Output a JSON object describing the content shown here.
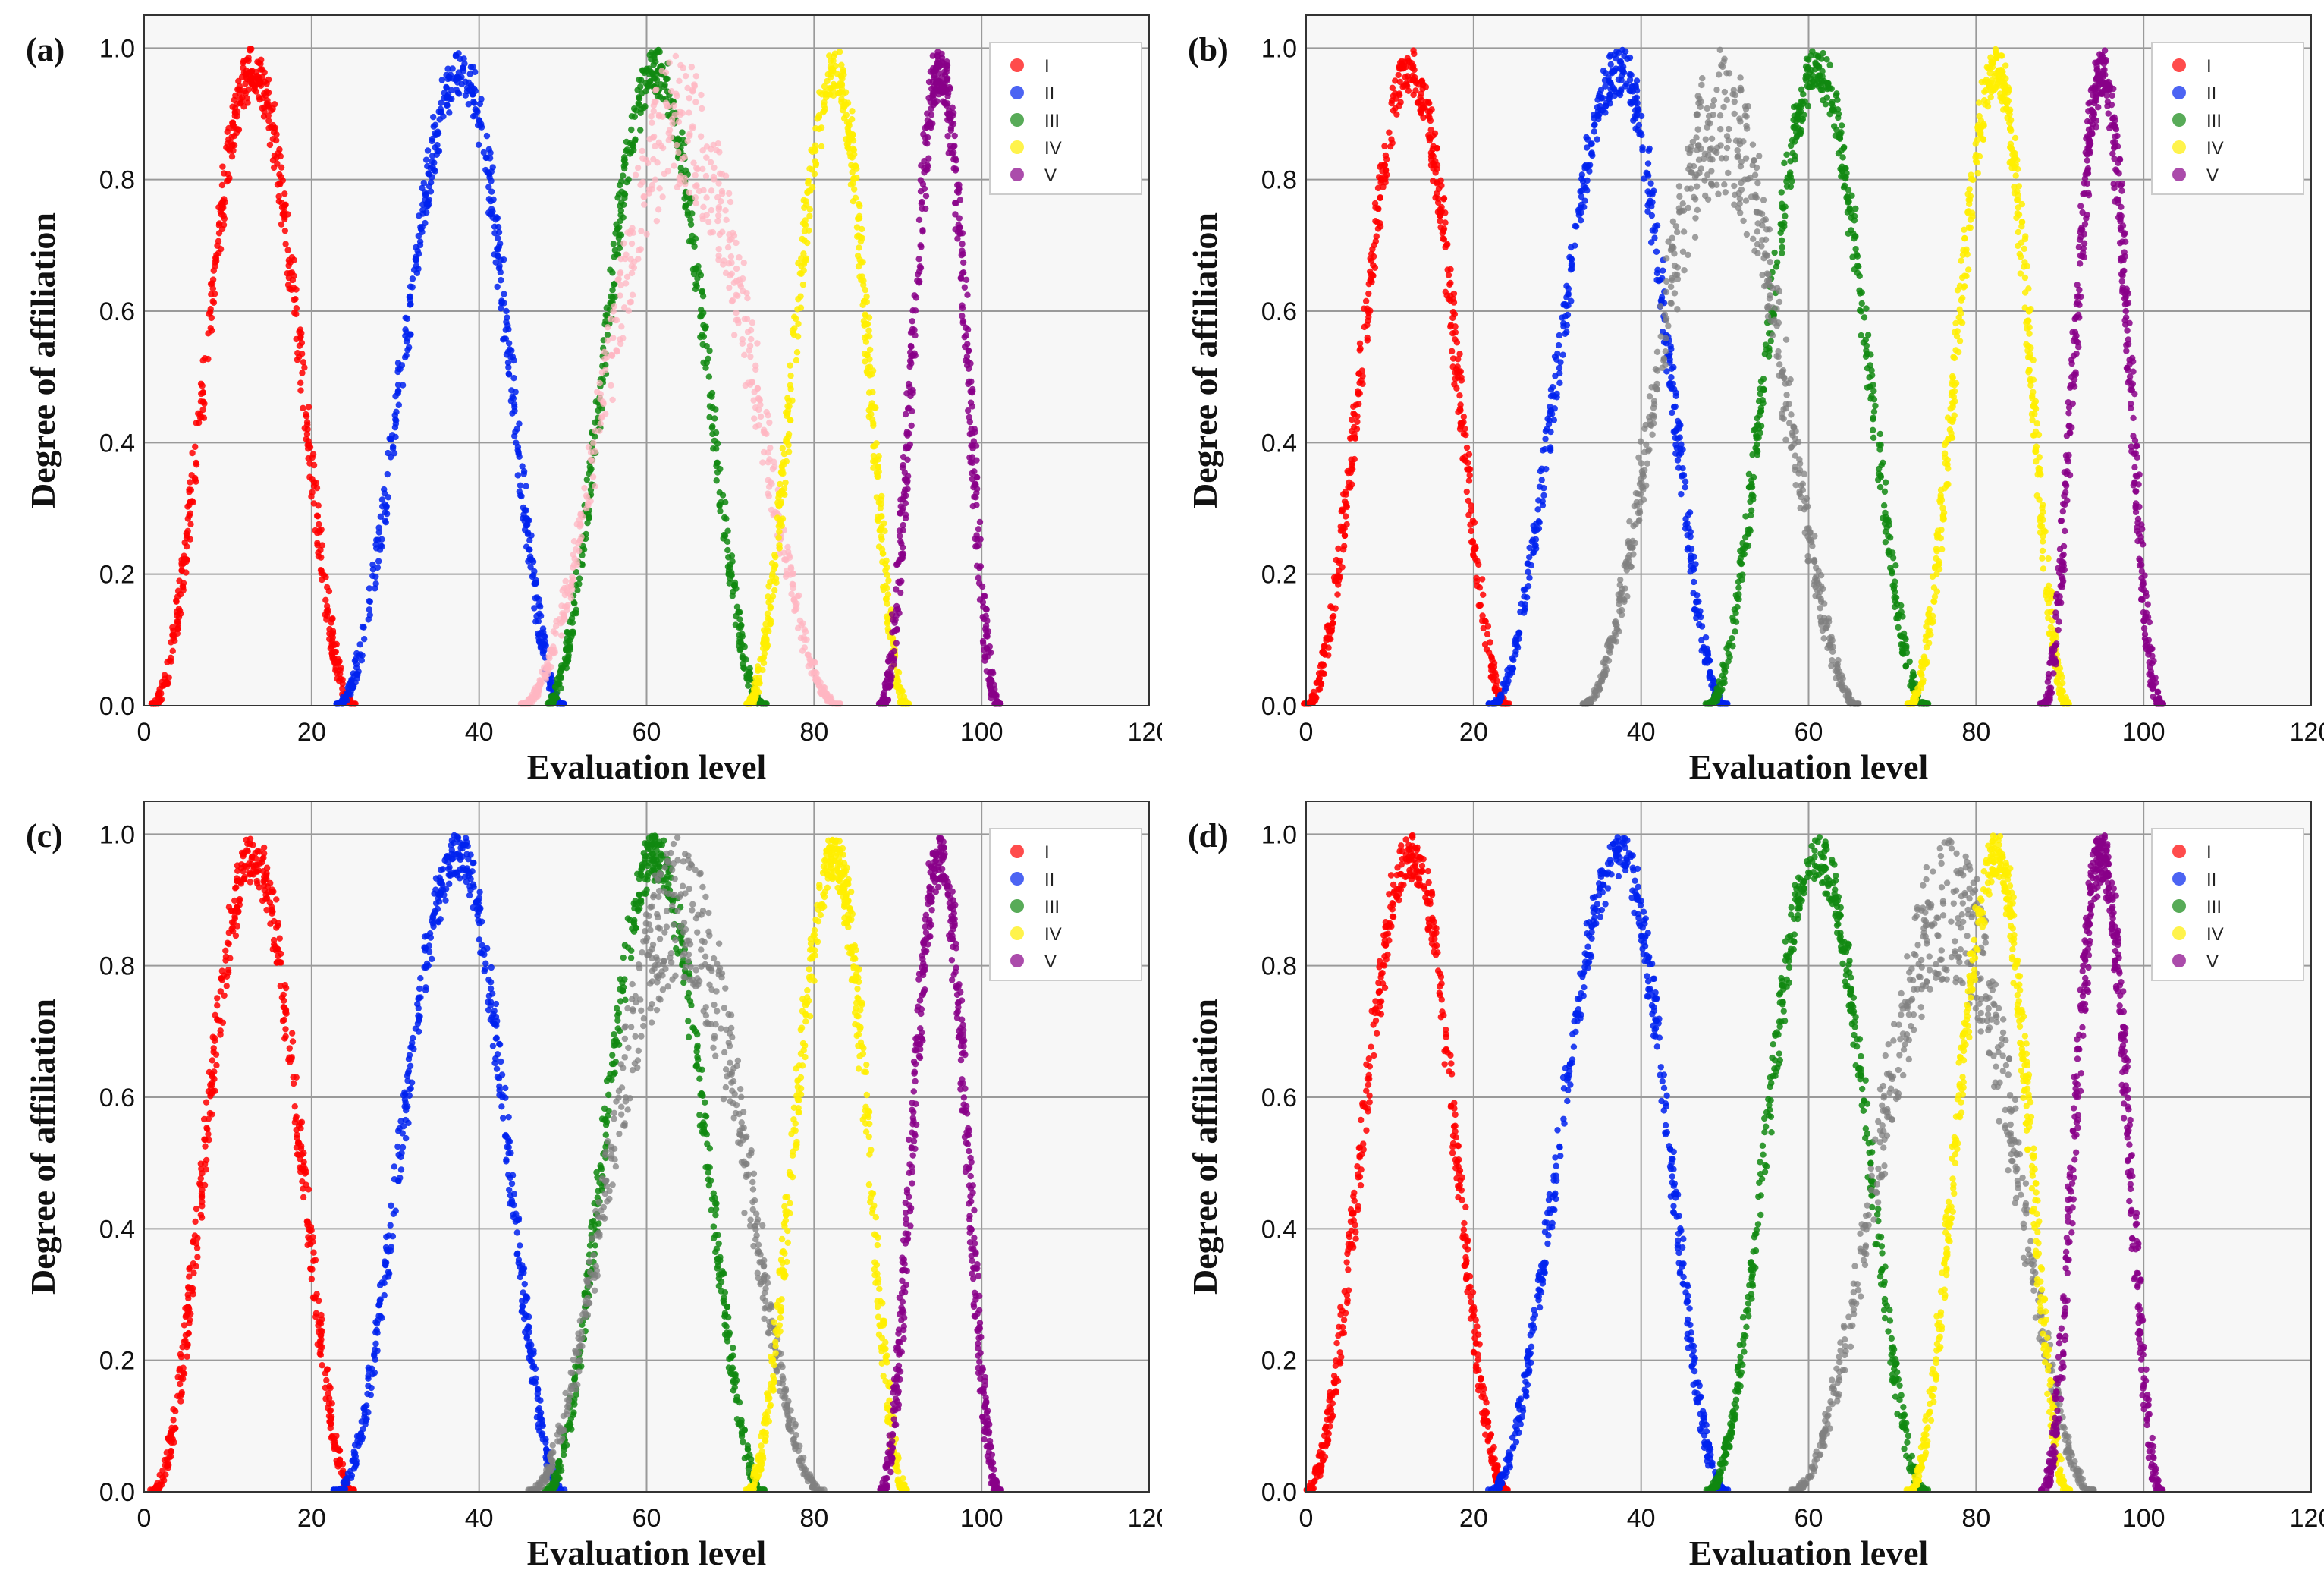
{
  "chart_data": [
    {
      "panel_label": "(a)",
      "type": "scatter",
      "xlabel": "Evaluation level",
      "ylabel": "Degree of affiliation",
      "xlim": [
        0,
        120
      ],
      "ylim": [
        0,
        1.05
      ],
      "xticks": [
        "0",
        "20",
        "40",
        "60",
        "80",
        "100",
        "120"
      ],
      "yticks": [
        "0.0",
        "0.2",
        "0.4",
        "0.6",
        "0.8",
        "1.0"
      ],
      "grid": true,
      "legend_position": "top-right",
      "series": [
        {
          "name": "I",
          "color": "#ff0000",
          "center": 13,
          "left_base": 1,
          "right_base": 25
        },
        {
          "name": "II",
          "color": "#0022ee",
          "center": 38,
          "left_base": 23,
          "right_base": 50
        },
        {
          "name": "III",
          "color": "#118811",
          "center": 61,
          "left_base": 48,
          "right_base": 74
        },
        {
          "name": "IV",
          "color": "#ffee00",
          "center": 82.5,
          "left_base": 72,
          "right_base": 91
        },
        {
          "name": "V",
          "color": "#880088",
          "center": 95,
          "left_base": 88,
          "right_base": 102
        }
      ],
      "extra": {
        "color": "#ffb6c1",
        "center": 64,
        "left_base": 45,
        "right_base": 83
      }
    },
    {
      "panel_label": "(b)",
      "type": "scatter",
      "xlabel": "Evaluation level",
      "ylabel": "Degree of affiliation",
      "xlim": [
        0,
        120
      ],
      "ylim": [
        0,
        1.05
      ],
      "xticks": [
        "0",
        "20",
        "40",
        "60",
        "80",
        "100",
        "120"
      ],
      "yticks": [
        "0.0",
        "0.2",
        "0.4",
        "0.6",
        "0.8",
        "1.0"
      ],
      "grid": true,
      "legend_position": "top-right",
      "series": [
        {
          "name": "I",
          "color": "#ff0000",
          "center": 12.5,
          "left_base": 0,
          "right_base": 24
        },
        {
          "name": "II",
          "color": "#0022ee",
          "center": 37.5,
          "left_base": 22,
          "right_base": 50
        },
        {
          "name": "III",
          "color": "#118811",
          "center": 61,
          "left_base": 48,
          "right_base": 74
        },
        {
          "name": "IV",
          "color": "#ffee00",
          "center": 82.5,
          "left_base": 72,
          "right_base": 91
        },
        {
          "name": "V",
          "color": "#880088",
          "center": 95,
          "left_base": 88,
          "right_base": 102
        }
      ],
      "extra": {
        "color": "#808080",
        "center": 49.5,
        "left_base": 33,
        "right_base": 66
      }
    },
    {
      "panel_label": "(c)",
      "type": "scatter",
      "xlabel": "Evaluation level",
      "ylabel": "Degree of affiliation",
      "xlim": [
        0,
        120
      ],
      "ylim": [
        0,
        1.05
      ],
      "xticks": [
        "0",
        "20",
        "40",
        "60",
        "80",
        "100",
        "120"
      ],
      "yticks": [
        "0.0",
        "0.2",
        "0.4",
        "0.6",
        "0.8",
        "1.0"
      ],
      "grid": true,
      "legend_position": "top-right",
      "series": [
        {
          "name": "I",
          "color": "#ff0000",
          "center": 13,
          "left_base": 1,
          "right_base": 25
        },
        {
          "name": "II",
          "color": "#0022ee",
          "center": 37.5,
          "left_base": 23,
          "right_base": 50
        },
        {
          "name": "III",
          "color": "#118811",
          "center": 61,
          "left_base": 48,
          "right_base": 74
        },
        {
          "name": "IV",
          "color": "#ffee00",
          "center": 82.5,
          "left_base": 72,
          "right_base": 91
        },
        {
          "name": "V",
          "color": "#880088",
          "center": 95,
          "left_base": 88,
          "right_base": 102
        }
      ],
      "extra": {
        "color": "#808080",
        "center": 64,
        "left_base": 46,
        "right_base": 81
      }
    },
    {
      "panel_label": "(d)",
      "type": "scatter",
      "xlabel": "Evaluation level",
      "ylabel": "Degree of affiliation",
      "xlim": [
        0,
        120
      ],
      "ylim": [
        0,
        1.05
      ],
      "xticks": [
        "0",
        "20",
        "40",
        "60",
        "80",
        "100",
        "120"
      ],
      "yticks": [
        "0.0",
        "0.2",
        "0.4",
        "0.6",
        "0.8",
        "1.0"
      ],
      "grid": true,
      "legend_position": "top-right",
      "series": [
        {
          "name": "I",
          "color": "#ff0000",
          "center": 12.5,
          "left_base": 0,
          "right_base": 24
        },
        {
          "name": "II",
          "color": "#0022ee",
          "center": 37.5,
          "left_base": 22,
          "right_base": 50
        },
        {
          "name": "III",
          "color": "#118811",
          "center": 61,
          "left_base": 48,
          "right_base": 74
        },
        {
          "name": "IV",
          "color": "#ffee00",
          "center": 82.5,
          "left_base": 72,
          "right_base": 91
        },
        {
          "name": "V",
          "color": "#880088",
          "center": 95,
          "left_base": 88,
          "right_base": 102
        }
      ],
      "extra": {
        "color": "#808080",
        "center": 77,
        "left_base": 58,
        "right_base": 94
      }
    }
  ]
}
